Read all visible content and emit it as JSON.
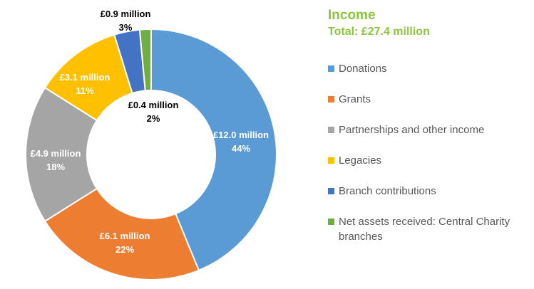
{
  "chart_data": {
    "type": "pie",
    "title": "Income",
    "subtitle": "Total: £27.4 million",
    "donut": true,
    "legend_position": "right",
    "slices": [
      {
        "name": "Donations",
        "value": 12.0,
        "value_label": "£12.0 million",
        "percent_label": "44%",
        "color": "#5b9bd5",
        "label_color": "#ffffff"
      },
      {
        "name": "Grants",
        "value": 6.1,
        "value_label": "£6.1 million",
        "percent_label": "22%",
        "color": "#ed7d31",
        "label_color": "#ffffff"
      },
      {
        "name": "Partnerships and other income",
        "value": 4.9,
        "value_label": "£4.9 million",
        "percent_label": "18%",
        "color": "#a5a5a5",
        "label_color": "#ffffff"
      },
      {
        "name": "Legacies",
        "value": 3.1,
        "value_label": "£3.1 million",
        "percent_label": "11%",
        "color": "#ffc000",
        "label_color": "#ffffff"
      },
      {
        "name": "Branch contributions",
        "value": 0.9,
        "value_label": "£0.9 million",
        "percent_label": "3%",
        "color": "#4472c4",
        "label_color": "#000000"
      },
      {
        "name": "Net assets received: Central Charity branches",
        "value": 0.4,
        "value_label": "£0.4 million",
        "percent_label": "2%",
        "color": "#70ad47",
        "label_color": "#000000"
      }
    ]
  }
}
